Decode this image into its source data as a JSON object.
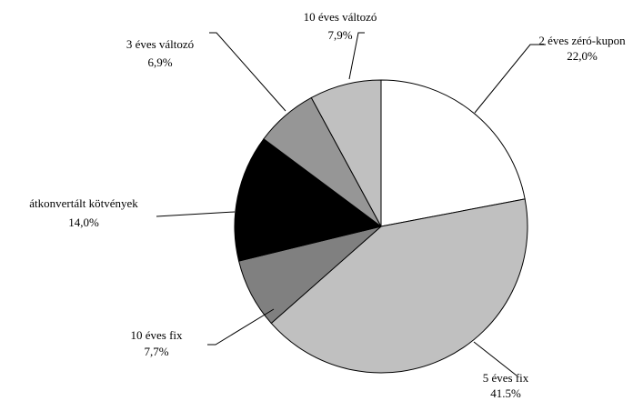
{
  "chart_data": {
    "type": "pie",
    "start_angle_deg": 90,
    "direction": "clockwise",
    "slices": [
      {
        "name": "2 éves zéró-kupon",
        "value": 22.0,
        "label": "22,0%",
        "color": "#ffffff"
      },
      {
        "name": "5 éves fix",
        "value": 41.5,
        "label": "41.5%",
        "color": "#c0c0c0"
      },
      {
        "name": "10 éves fix",
        "value": 7.7,
        "label": "7,7%",
        "color": "#808080"
      },
      {
        "name": "átkonvertált kötvények",
        "value": 14.0,
        "label": "14,0%",
        "color": "#000000"
      },
      {
        "name": "3 éves változó",
        "value": 6.9,
        "label": "6,9%",
        "color": "#969696"
      },
      {
        "name": "10 éves változó",
        "value": 7.9,
        "label": "7,9%",
        "color": "#c0c0c0"
      }
    ],
    "legend": "none",
    "data_labels": "outside with leader lines"
  }
}
